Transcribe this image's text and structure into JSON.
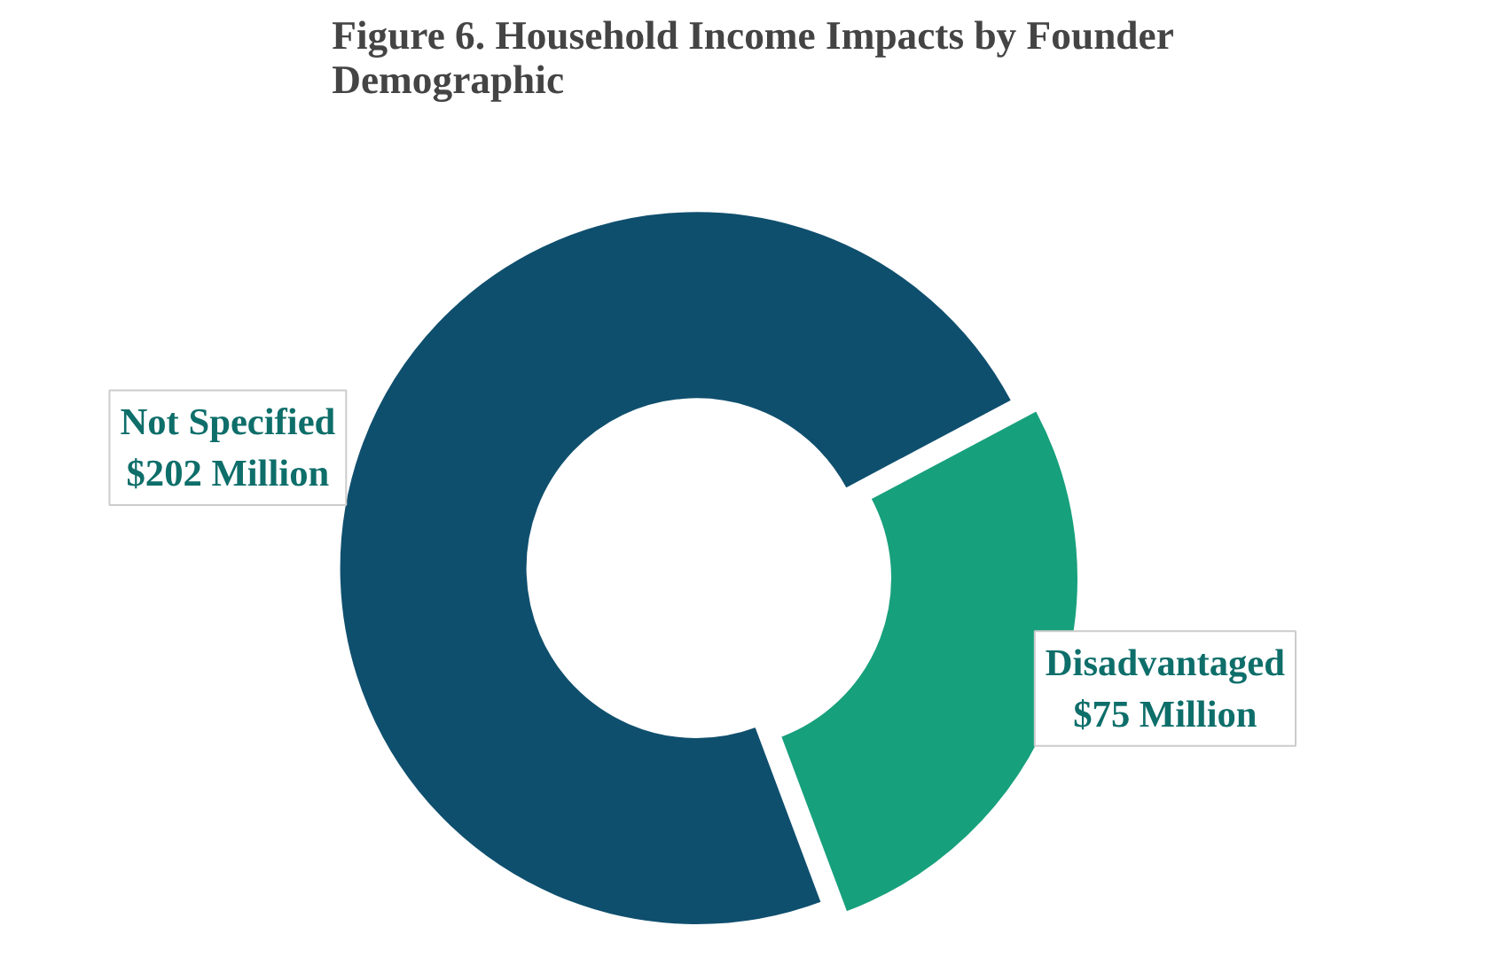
{
  "chart_data": {
    "type": "donut",
    "title": "Figure 6. Household Income Impacts by Founder Demographic",
    "categories": [
      "Not Specified",
      "Disadvantaged"
    ],
    "values": [
      202,
      75
    ],
    "colors": [
      "#0f4f6e",
      "#17a07c"
    ],
    "value_labels": [
      "$202 Million",
      "$75 Million"
    ]
  }
}
